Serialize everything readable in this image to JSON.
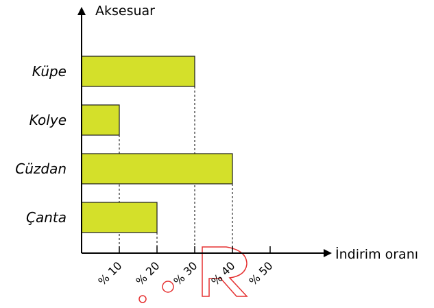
{
  "chart_data": {
    "type": "bar",
    "orientation": "horizontal",
    "categories": [
      "Küpe",
      "Kolye",
      "Cüzdan",
      "Çanta"
    ],
    "values": [
      30,
      10,
      40,
      20
    ],
    "xlabel": "İndirim oranı",
    "ylabel": "Aksesuar",
    "xlim": [
      0,
      50
    ],
    "x_ticks": [
      10,
      20,
      30,
      40,
      50
    ],
    "x_tick_labels": [
      "% 10",
      "% 20",
      "% 30",
      "% 40",
      "% 50"
    ],
    "grid": false,
    "guide_lines": "dashed vertical lines from bar ends to x axis",
    "colors": {
      "bar_fill": "#d4e02a",
      "bar_stroke": "#1a1a1a",
      "axis": "#000000",
      "watermark_outline": "#e53030"
    }
  }
}
